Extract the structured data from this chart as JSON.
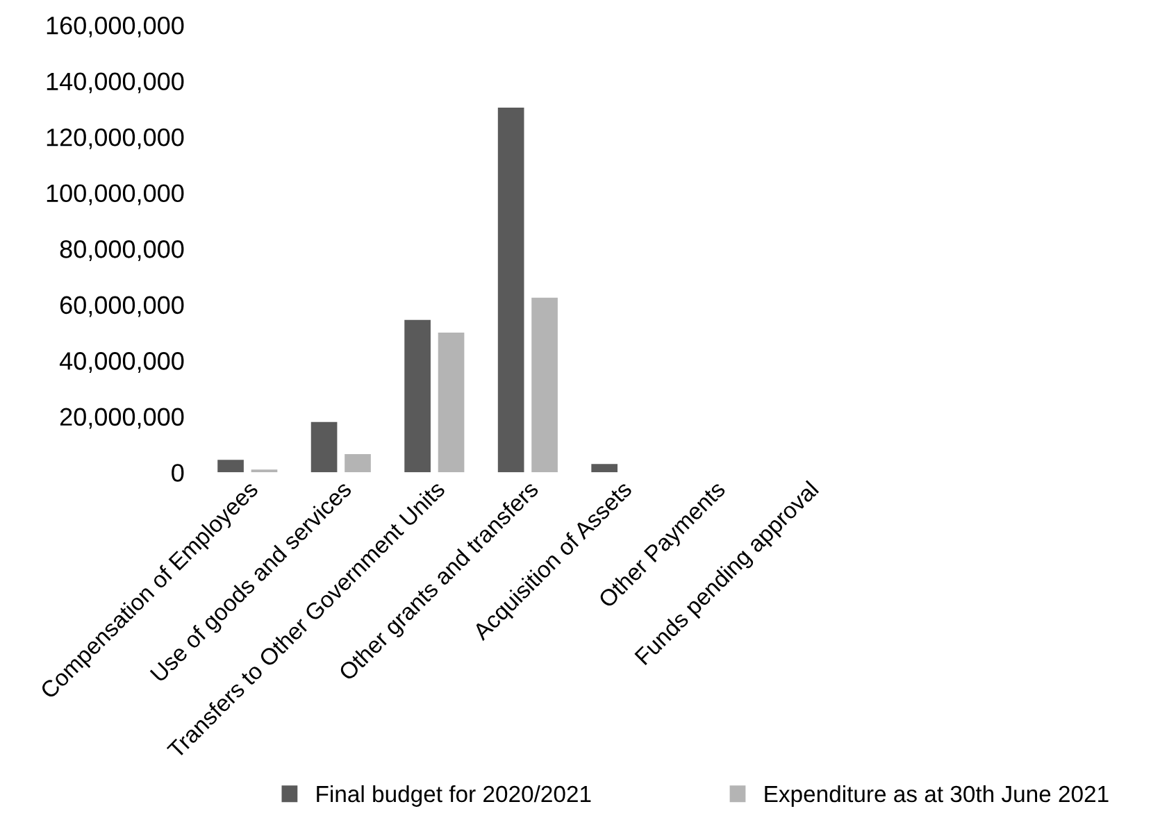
{
  "chart_data": {
    "type": "bar",
    "categories": [
      "Compensation of Employees",
      "Use of goods and services",
      "Transfers to Other Government Units",
      "Other grants and transfers",
      "Acquisition of Assets",
      "Other Payments",
      "Funds pending approval"
    ],
    "series": [
      {
        "name": "Final budget for 2020/2021",
        "color": "#5a5a5a",
        "values": [
          4500000,
          18000000,
          54500000,
          130500000,
          3000000,
          0,
          0
        ]
      },
      {
        "name": "Expenditure as at 30th June 2021",
        "color": "#b4b4b4",
        "values": [
          1000000,
          6500000,
          50000000,
          62500000,
          0,
          0,
          0
        ]
      }
    ],
    "ylim": [
      0,
      160000000
    ],
    "yticks": [
      {
        "value": 0,
        "label": "0"
      },
      {
        "value": 20000000,
        "label": "20,000,000"
      },
      {
        "value": 40000000,
        "label": "40,000,000"
      },
      {
        "value": 60000000,
        "label": "60,000,000"
      },
      {
        "value": 80000000,
        "label": "80,000,000"
      },
      {
        "value": 100000000,
        "label": "100,000,000"
      },
      {
        "value": 120000000,
        "label": "120,000,000"
      },
      {
        "value": 140000000,
        "label": "140,000,000"
      },
      {
        "value": 160000000,
        "label": "160,000,000"
      }
    ],
    "legend": "bottom"
  }
}
